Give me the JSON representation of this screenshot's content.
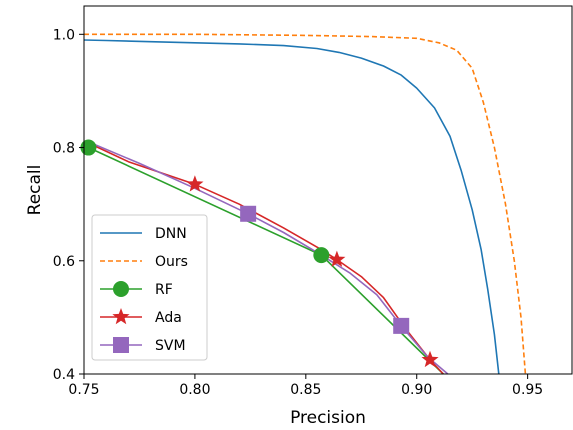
{
  "chart_data": {
    "type": "line",
    "title": "",
    "xlabel": "Precision",
    "ylabel": "Recall",
    "xlim": [
      0.75,
      0.97
    ],
    "ylim": [
      0.4,
      1.05
    ],
    "xticks": [
      0.75,
      0.8,
      0.85,
      0.9,
      0.95
    ],
    "xtick_labels": [
      "0.75",
      "0.80",
      "0.85",
      "0.90",
      "0.95"
    ],
    "yticks": [
      0.4,
      0.6,
      0.8,
      1.0
    ],
    "ytick_labels": [
      "0.4",
      "0.6",
      "0.8",
      "1.0"
    ],
    "grid": false,
    "legend_position": "lower-left",
    "series": [
      {
        "name": "DNN",
        "color": "#1f77b4",
        "style": "solid",
        "marker": "none",
        "x": [
          0.75,
          0.76,
          0.78,
          0.8,
          0.82,
          0.84,
          0.855,
          0.865,
          0.875,
          0.885,
          0.893,
          0.9,
          0.908,
          0.915,
          0.92,
          0.925,
          0.929,
          0.932,
          0.935,
          0.937
        ],
        "y": [
          0.99,
          0.989,
          0.987,
          0.985,
          0.983,
          0.98,
          0.975,
          0.968,
          0.958,
          0.944,
          0.928,
          0.905,
          0.87,
          0.82,
          0.76,
          0.69,
          0.62,
          0.55,
          0.47,
          0.4
        ]
      },
      {
        "name": "Ours",
        "color": "#ff7f0e",
        "style": "dashed",
        "marker": "none",
        "x": [
          0.75,
          0.8,
          0.85,
          0.88,
          0.9,
          0.91,
          0.918,
          0.925,
          0.93,
          0.935,
          0.94,
          0.944,
          0.947,
          0.949
        ],
        "y": [
          1.0,
          1.0,
          0.998,
          0.996,
          0.993,
          0.985,
          0.972,
          0.94,
          0.88,
          0.8,
          0.7,
          0.6,
          0.5,
          0.4
        ]
      },
      {
        "name": "RF",
        "color": "#2ca02c",
        "style": "solid",
        "marker": "circle",
        "x": [
          0.752,
          0.857,
          0.912
        ],
        "y": [
          0.8,
          0.61,
          0.4
        ],
        "marker_x": [
          0.752,
          0.857
        ],
        "marker_y": [
          0.8,
          0.61
        ]
      },
      {
        "name": "Ada",
        "color": "#d62728",
        "style": "solid",
        "marker": "star",
        "x": [
          0.752,
          0.77,
          0.8,
          0.82,
          0.84,
          0.856,
          0.864,
          0.875,
          0.885,
          0.895,
          0.906,
          0.912
        ],
        "y": [
          0.808,
          0.775,
          0.735,
          0.7,
          0.658,
          0.622,
          0.602,
          0.572,
          0.535,
          0.48,
          0.425,
          0.4
        ],
        "marker_x": [
          0.8,
          0.864,
          0.906
        ],
        "marker_y": [
          0.735,
          0.602,
          0.425
        ]
      },
      {
        "name": "SVM",
        "color": "#9467bd",
        "style": "solid",
        "marker": "square",
        "x": [
          0.752,
          0.775,
          0.8,
          0.824,
          0.84,
          0.855,
          0.87,
          0.882,
          0.893,
          0.905,
          0.914
        ],
        "y": [
          0.81,
          0.772,
          0.728,
          0.683,
          0.65,
          0.615,
          0.578,
          0.54,
          0.485,
          0.43,
          0.4
        ],
        "marker_x": [
          0.824,
          0.893
        ],
        "marker_y": [
          0.683,
          0.485
        ]
      }
    ]
  }
}
